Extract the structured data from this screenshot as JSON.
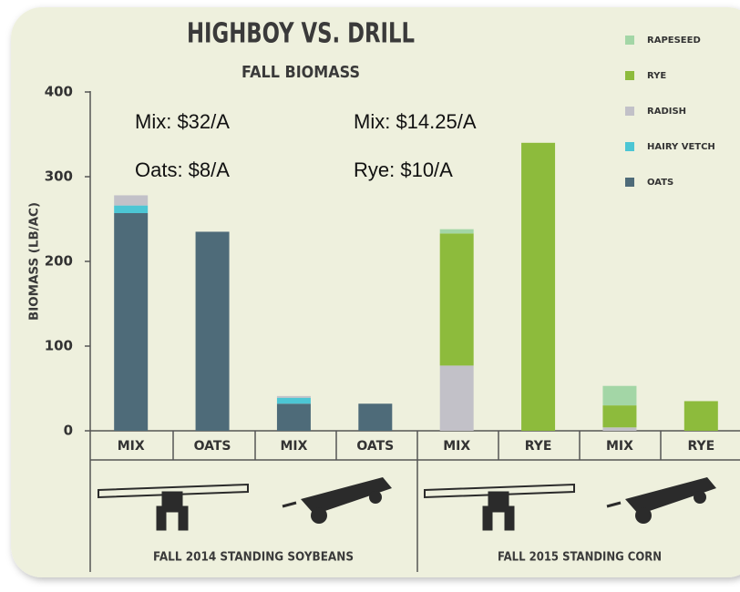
{
  "chart_data": {
    "type": "stacked-bar",
    "title": "HIGHBOY VS. DRILL",
    "subtitle": "FALL BIOMASS",
    "y_label": "BIOMASS (LB/AC)",
    "categories": [
      "MIX",
      "OATS",
      "MIX",
      "OATS",
      "MIX",
      "RYE",
      "MIX",
      "RYE"
    ],
    "groups": [
      "FALL 2014 STANDING SOYBEANS",
      "FALL 2015 STANDING CORN"
    ],
    "annotations": [
      "Mix: $32/A",
      "Oats: $8/A",
      "Mix: $14.25/A",
      "Rye: $10/A"
    ],
    "series": [
      {
        "name": "OATS",
        "color": "#4e6b79",
        "values": [
          257,
          235,
          32,
          32,
          0,
          0,
          0,
          0
        ]
      },
      {
        "name": "HAIRY VETCH",
        "color": "#4cc6d4",
        "values": [
          9,
          0,
          7,
          0,
          0,
          0,
          0,
          0
        ]
      },
      {
        "name": "RADISH",
        "color": "#c2c1c8",
        "values": [
          12,
          0,
          2,
          0,
          77,
          0,
          4,
          0
        ]
      },
      {
        "name": "RYE",
        "color": "#8dbb3c",
        "values": [
          0,
          0,
          0,
          0,
          156,
          340,
          26,
          35
        ]
      },
      {
        "name": "RAPESEED",
        "color": "#a3d6a6",
        "values": [
          0,
          0,
          0,
          0,
          5,
          0,
          23,
          0
        ]
      }
    ],
    "ylim": [
      0,
      400
    ],
    "yticks": [
      0,
      100,
      200,
      300,
      400
    ],
    "legend": "top-right"
  }
}
